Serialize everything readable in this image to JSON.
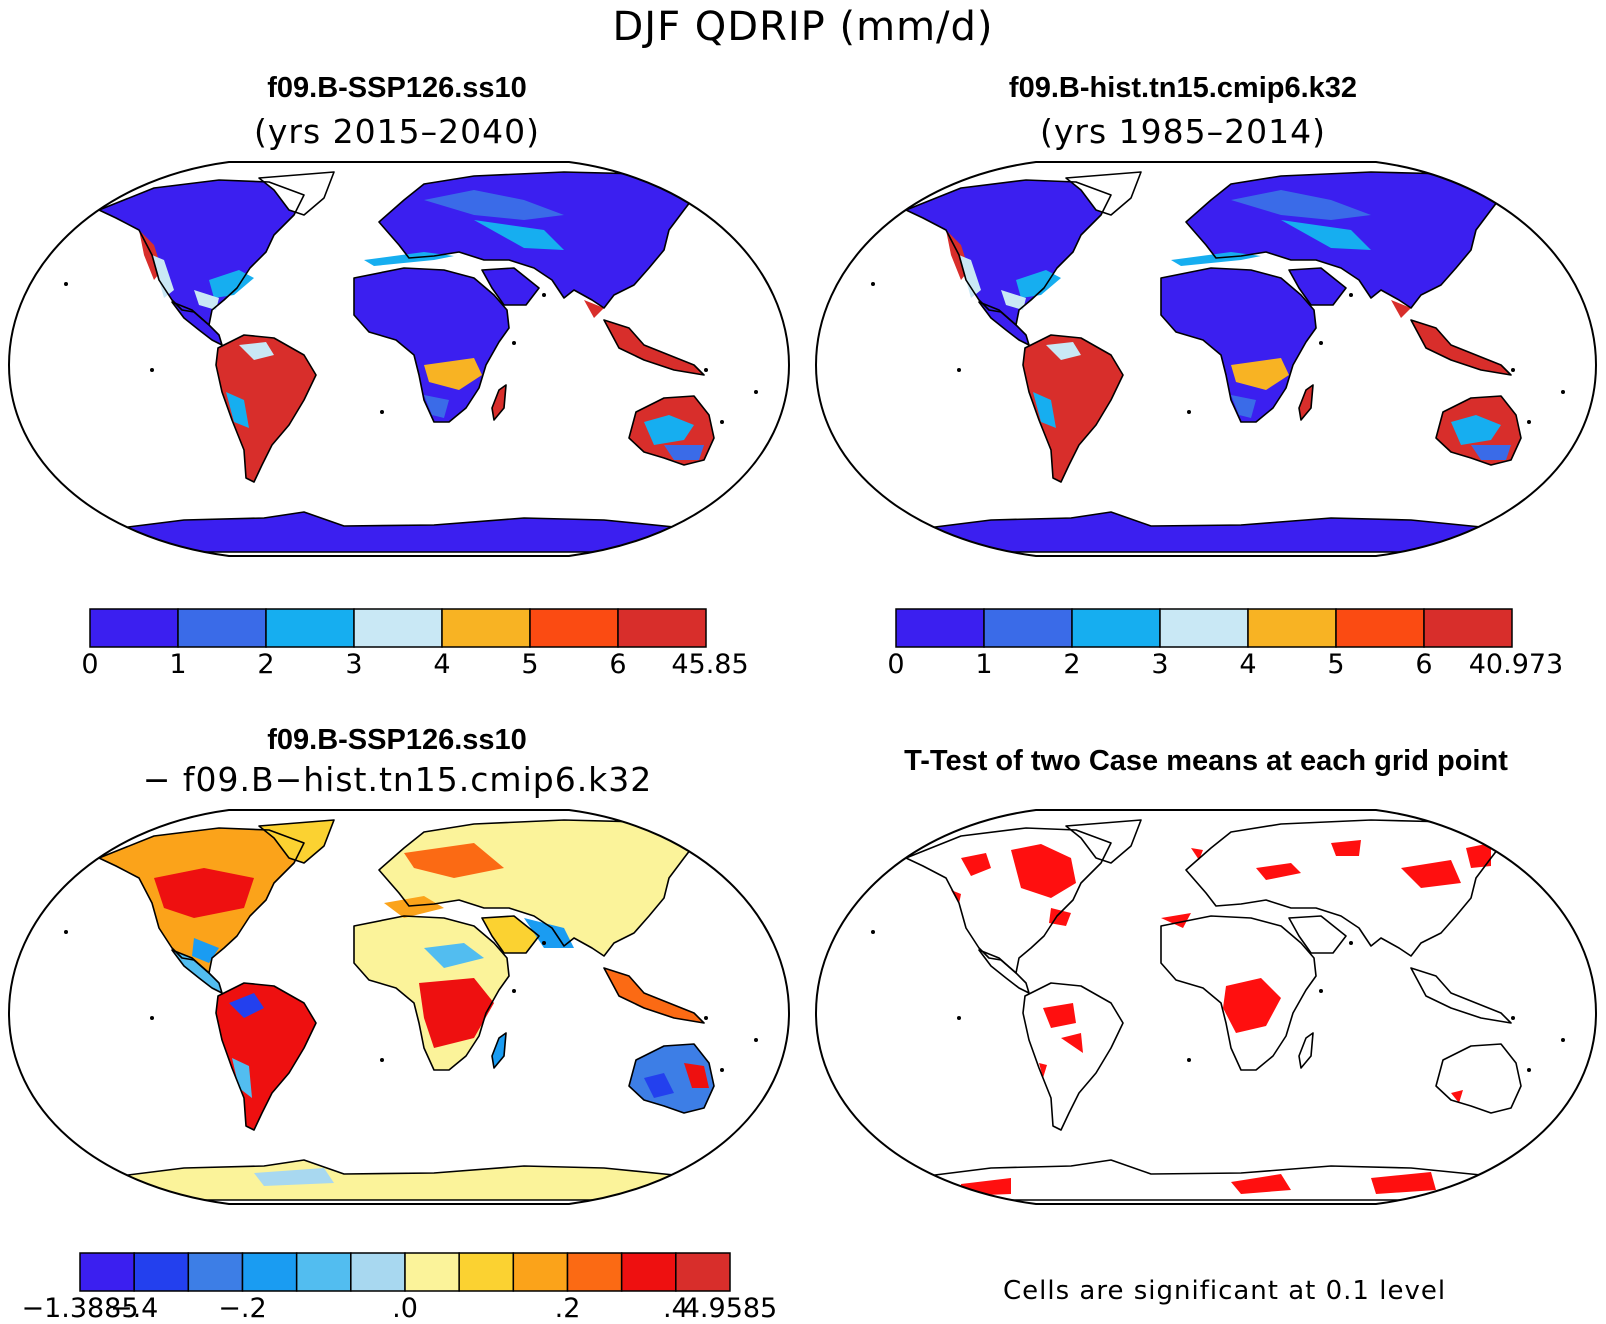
{
  "figure": {
    "title": "DJF QDRIP (mm/d)"
  },
  "panels": [
    {
      "title": "f09.B-SSP126.ss10",
      "subtitle": "(yrs 2015–2040)",
      "colorbar": {
        "colors": [
          "#3b1ff0",
          "#3a6be8",
          "#16aef0",
          "#c9e8f5",
          "#f8b323",
          "#fb4b12",
          "#d82e2b"
        ],
        "labels": [
          "0",
          "1",
          "2",
          "3",
          "4",
          "5",
          "6",
          "45.85"
        ]
      }
    },
    {
      "title": "f09.B-hist.tn15.cmip6.k32",
      "subtitle": "(yrs 1985–2014)",
      "colorbar": {
        "colors": [
          "#3b1ff0",
          "#3a6be8",
          "#16aef0",
          "#c9e8f5",
          "#f8b323",
          "#fb4b12",
          "#d82e2b"
        ],
        "labels": [
          "0",
          "1",
          "2",
          "3",
          "4",
          "5",
          "6",
          "40.973"
        ]
      }
    },
    {
      "title": "f09.B-SSP126.ss10",
      "subtitle": "− f09.B−hist.tn15.cmip6.k32",
      "colorbar": {
        "colors": [
          "#3b1ff0",
          "#2340ee",
          "#3d7ee6",
          "#1a9cf2",
          "#52bdf0",
          "#a8d8f0",
          "#fbf39a",
          "#fbd231",
          "#fba31a",
          "#fb6a14",
          "#ee1010",
          "#d82e2b"
        ],
        "labels": [
          "−1.3885",
          "−.4",
          "−.2",
          ".0",
          ".2",
          ".4",
          "4.9585"
        ],
        "label_boundaries": [
          0,
          1,
          3,
          6,
          9,
          11,
          12
        ]
      }
    },
    {
      "title": "T-Test of two Case means at each grid point",
      "note": "Cells are significant at 0.1 level",
      "significance_color": "#ff0f0f"
    }
  ]
}
